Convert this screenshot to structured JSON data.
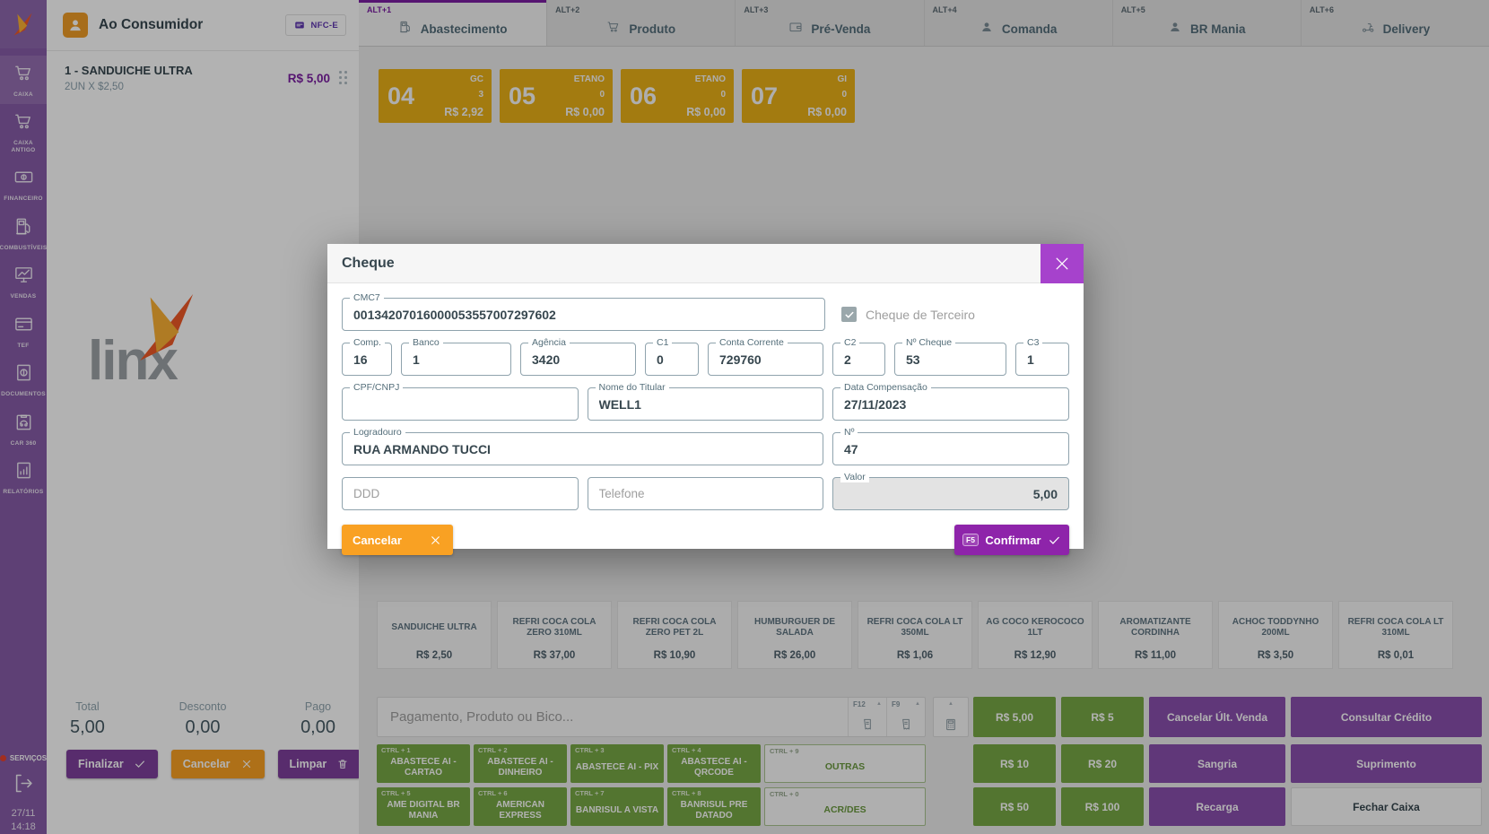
{
  "sidebar": {
    "items": [
      {
        "label": "CAIXA",
        "icon": "cart-icon",
        "active": true
      },
      {
        "label": "CAIXA ANTIGO",
        "icon": "cart-icon",
        "active": false
      },
      {
        "label": "FINANCEIRO",
        "icon": "money-icon",
        "active": false
      },
      {
        "label": "COMBUSTÍVEIS",
        "icon": "fuel-pump-icon",
        "active": false
      },
      {
        "label": "VENDAS",
        "icon": "sales-chart-icon",
        "active": false
      },
      {
        "label": "TEF",
        "icon": "credit-card-icon",
        "active": false
      },
      {
        "label": "DOCUMENTOS",
        "icon": "document-dollar-icon",
        "active": false
      },
      {
        "label": "CAR 360",
        "icon": "car-clipboard-icon",
        "active": false
      },
      {
        "label": "RELATÓRIOS",
        "icon": "report-icon",
        "active": false
      }
    ],
    "servicos_label": "SERVIÇOS",
    "date": "27/11",
    "time": "14:18"
  },
  "cart": {
    "customer": "Ao Consumidor",
    "badge": "NFC-E",
    "watermark": "linx",
    "items": [
      {
        "name": "1 - SANDUICHE ULTRA",
        "qty": "2UN X $2,50",
        "total": "R$ 5,00"
      }
    ],
    "totals": [
      {
        "label": "Total",
        "value": "5,00"
      },
      {
        "label": "Desconto",
        "value": "0,00"
      },
      {
        "label": "Pago",
        "value": "0,00"
      }
    ],
    "actions": {
      "finalizar": "Finalizar",
      "cancelar": "Cancelar",
      "limpar": "Limpar"
    }
  },
  "tabs": [
    {
      "shortcut": "ALT+1",
      "label": "Abastecimento",
      "icon": "fuel-pump-icon",
      "active": true
    },
    {
      "shortcut": "ALT+2",
      "label": "Produto",
      "icon": "cart-icon",
      "active": false
    },
    {
      "shortcut": "ALT+3",
      "label": "Pré-Venda",
      "icon": "wallet-icon",
      "active": false
    },
    {
      "shortcut": "ALT+4",
      "label": "Comanda",
      "icon": "person-icon",
      "active": false
    },
    {
      "shortcut": "ALT+5",
      "label": "BR Mania",
      "icon": "person-icon",
      "active": false
    },
    {
      "shortcut": "ALT+6",
      "label": "Delivery",
      "icon": "delivery-icon",
      "active": false
    }
  ],
  "pumps": [
    {
      "number": "04",
      "fuel": "GC",
      "qty": "3",
      "value": "R$ 2,92"
    },
    {
      "number": "05",
      "fuel": "ETANO",
      "qty": "0",
      "value": "R$ 0,00"
    },
    {
      "number": "06",
      "fuel": "ETANO",
      "qty": "0",
      "value": "R$ 0,00"
    },
    {
      "number": "07",
      "fuel": "GI",
      "qty": "0",
      "value": "R$ 0,00"
    }
  ],
  "products": [
    {
      "name": "SANDUICHE ULTRA",
      "price": "R$ 2,50"
    },
    {
      "name": "REFRI COCA COLA ZERO 310ML",
      "price": "R$ 37,00"
    },
    {
      "name": "REFRI COCA COLA ZERO PET 2L",
      "price": "R$ 10,90"
    },
    {
      "name": "HUMBURGUER DE SALADA",
      "price": "R$ 26,00"
    },
    {
      "name": "REFRI COCA COLA LT 350ML",
      "price": "R$ 1,06"
    },
    {
      "name": "AG COCO KEROCOCO 1LT",
      "price": "R$ 12,90"
    },
    {
      "name": "AROMATIZANTE CORDINHA",
      "price": "R$ 11,00"
    },
    {
      "name": "ACHOC TODDYNHO 200ML",
      "price": "R$ 3,50"
    },
    {
      "name": "REFRI COCA COLA LT 310ML",
      "price": "R$ 0,01"
    }
  ],
  "payment": {
    "search_placeholder": "Pagamento, Produto ou Bico...",
    "fkeys": [
      {
        "key": "F12",
        "icon": "receipt-icon"
      },
      {
        "key": "F9",
        "icon": "receipt-icon"
      }
    ],
    "methods": [
      [
        {
          "shortcut": "CTRL + 1",
          "label": "ABASTECE AI - CARTAO",
          "outline": false
        },
        {
          "shortcut": "CTRL + 2",
          "label": "ABASTECE AI - DINHEIRO",
          "outline": false
        },
        {
          "shortcut": "CTRL + 3",
          "label": "ABASTECE AI - PIX",
          "outline": false
        },
        {
          "shortcut": "CTRL + 4",
          "label": "ABASTECE AI - QRCODE",
          "outline": false
        },
        {
          "shortcut": "CTRL + 9",
          "label": "OUTRAS",
          "outline": true
        }
      ],
      [
        {
          "shortcut": "CTRL + 5",
          "label": "AME DIGITAL BR MANIA",
          "outline": false
        },
        {
          "shortcut": "CTRL + 6",
          "label": "AMERICAN EXPRESS",
          "outline": false
        },
        {
          "shortcut": "CTRL + 7",
          "label": "BANRISUL A VISTA",
          "outline": false
        },
        {
          "shortcut": "CTRL + 8",
          "label": "BANRISUL PRE DATADO",
          "outline": false
        },
        {
          "shortcut": "CTRL + 0",
          "label": "ACR/DES",
          "outline": true
        }
      ]
    ],
    "quick": [
      [
        {
          "label": "R$ 5,00",
          "color": "green"
        },
        {
          "label": "R$ 5",
          "color": "green"
        },
        {
          "label": "Cancelar Últ. Venda",
          "color": "purple"
        },
        {
          "label": "Consultar Crédito",
          "color": "purple"
        }
      ],
      [
        {
          "label": "R$ 10",
          "color": "green"
        },
        {
          "label": "R$ 20",
          "color": "green"
        },
        {
          "label": "Sangria",
          "color": "purple"
        },
        {
          "label": "Suprimento",
          "color": "purple"
        }
      ],
      [
        {
          "label": "R$ 50",
          "color": "green"
        },
        {
          "label": "R$ 100",
          "color": "green"
        },
        {
          "label": "Recarga",
          "color": "purple"
        },
        {
          "label": "Fechar Caixa",
          "color": "white"
        }
      ]
    ]
  },
  "modal": {
    "title": "Cheque",
    "checkbox": {
      "label": "Cheque de Terceiro",
      "checked": true
    },
    "fields": {
      "cmc7": {
        "label": "CMC7",
        "value": "00134207016000053557007297602"
      },
      "comp": {
        "label": "Comp.",
        "value": "16"
      },
      "banco": {
        "label": "Banco",
        "value": "1"
      },
      "agencia": {
        "label": "Agência",
        "value": "3420"
      },
      "c1": {
        "label": "C1",
        "value": "0"
      },
      "conta": {
        "label": "Conta Corrente",
        "value": "729760"
      },
      "c2": {
        "label": "C2",
        "value": "2"
      },
      "ncheque": {
        "label": "Nº Cheque",
        "value": "53"
      },
      "c3": {
        "label": "C3",
        "value": "1"
      },
      "cpf": {
        "label": "CPF/CNPJ",
        "value": ""
      },
      "titular": {
        "label": "Nome do Titular",
        "value": "WELL1"
      },
      "data": {
        "label": "Data Compensação",
        "value": "27/11/2023"
      },
      "logradouro": {
        "label": "Logradouro",
        "value": "RUA ARMANDO TUCCI"
      },
      "numero": {
        "label": "Nº",
        "value": "47"
      },
      "ddd": {
        "placeholder": "DDD",
        "value": ""
      },
      "telefone": {
        "placeholder": "Telefone",
        "value": ""
      },
      "valor": {
        "label": "Valor",
        "value": "5,00",
        "disabled": true
      }
    },
    "buttons": {
      "cancel": "Cancelar",
      "confirm": "Confirmar",
      "confirm_key": "F5"
    }
  },
  "colors": {
    "sidebar_purple": "#875ca8",
    "accent_purple": "#8e24aa",
    "price_purple": "#7b1fa2",
    "pump_amber": "#eab018",
    "method_green": "#77a845",
    "quick_purple": "#8a4fae",
    "cancel_orange": "#f9a123",
    "close_magenta": "#a642cc"
  }
}
